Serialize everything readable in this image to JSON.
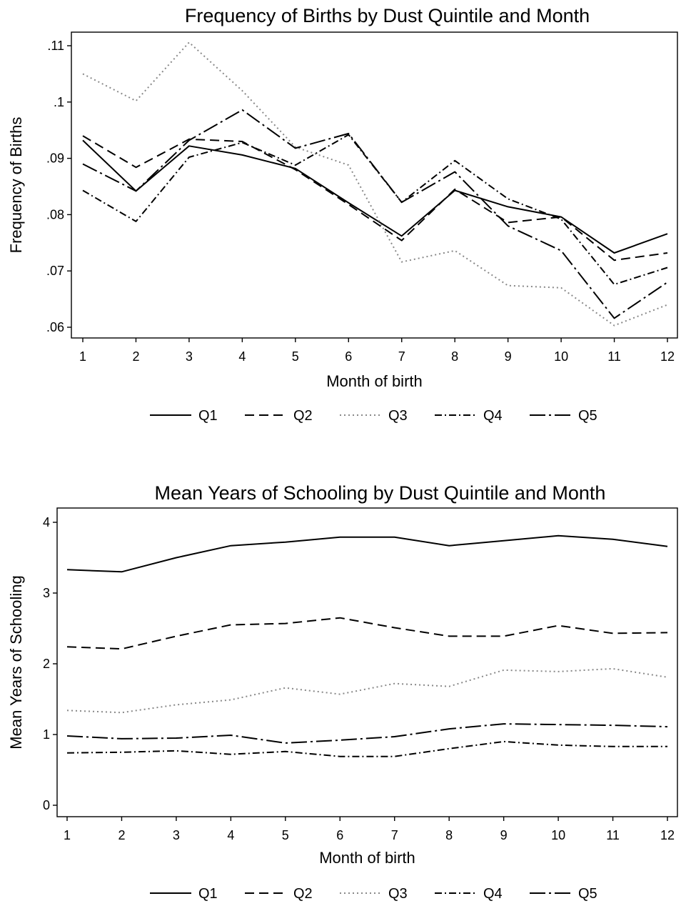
{
  "chart_data": [
    {
      "type": "line",
      "title": "Frequency of Births by Dust Quintile and Month",
      "xlabel": "Month of birth",
      "ylabel": "Frequency of Births",
      "x": [
        1,
        2,
        3,
        4,
        5,
        6,
        7,
        8,
        9,
        10,
        11,
        12
      ],
      "xlim": [
        1,
        12
      ],
      "ylim": [
        0.06,
        0.11
      ],
      "yticks": [
        0.06,
        0.07,
        0.08,
        0.09,
        0.1,
        0.11
      ],
      "ytick_labels": [
        ".06",
        ".07",
        ".08",
        ".09",
        ".1",
        ".11"
      ],
      "xtick_labels": [
        "1",
        "2",
        "3",
        "4",
        "5",
        "6",
        "7",
        "8",
        "9",
        "10",
        "11",
        "12"
      ],
      "grid": false,
      "legend_position": "bottom",
      "series": [
        {
          "name": "Q1",
          "style": "solid",
          "values": [
            0.0932,
            0.0842,
            0.0922,
            0.0906,
            0.0882,
            0.0821,
            0.0762,
            0.0843,
            0.0814,
            0.0796,
            0.0732,
            0.0766
          ]
        },
        {
          "name": "Q2",
          "style": "dashed",
          "values": [
            0.094,
            0.0884,
            0.0934,
            0.093,
            0.088,
            0.0818,
            0.0754,
            0.0845,
            0.0786,
            0.0796,
            0.0719,
            0.0732
          ]
        },
        {
          "name": "Q3",
          "style": "dotted",
          "values": [
            0.105,
            0.1002,
            0.1106,
            0.102,
            0.092,
            0.0888,
            0.0716,
            0.0736,
            0.0674,
            0.067,
            0.0603,
            0.064
          ]
        },
        {
          "name": "Q4",
          "style": "dashdot",
          "values": [
            0.0843,
            0.0788,
            0.0902,
            0.0928,
            0.0888,
            0.0942,
            0.0822,
            0.0896,
            0.0828,
            0.0792,
            0.0676,
            0.0706
          ]
        },
        {
          "name": "Q5",
          "style": "longdashdot",
          "values": [
            0.089,
            0.0842,
            0.0932,
            0.0986,
            0.0918,
            0.0944,
            0.0822,
            0.0876,
            0.078,
            0.0736,
            0.0616,
            0.068
          ]
        }
      ]
    },
    {
      "type": "line",
      "title": "Mean Years of Schooling by Dust Quintile and Month",
      "xlabel": "Month of birth",
      "ylabel": "Mean Years of Schooling",
      "x": [
        1,
        2,
        3,
        4,
        5,
        6,
        7,
        8,
        9,
        10,
        11,
        12
      ],
      "xlim": [
        1,
        12
      ],
      "ylim": [
        0,
        4
      ],
      "yticks": [
        0,
        1,
        2,
        3,
        4
      ],
      "ytick_labels": [
        "0",
        "1",
        "2",
        "3",
        "4"
      ],
      "xtick_labels": [
        "1",
        "2",
        "3",
        "4",
        "5",
        "6",
        "7",
        "8",
        "9",
        "10",
        "11",
        "12"
      ],
      "grid": false,
      "legend_position": "bottom",
      "series": [
        {
          "name": "Q1",
          "style": "solid",
          "values": [
            3.33,
            3.3,
            3.5,
            3.67,
            3.72,
            3.79,
            3.79,
            3.67,
            3.74,
            3.81,
            3.76,
            3.66
          ]
        },
        {
          "name": "Q2",
          "style": "dashed",
          "values": [
            2.24,
            2.21,
            2.39,
            2.55,
            2.57,
            2.65,
            2.51,
            2.39,
            2.39,
            2.54,
            2.43,
            2.44
          ]
        },
        {
          "name": "Q3",
          "style": "dotted",
          "values": [
            1.34,
            1.31,
            1.42,
            1.49,
            1.66,
            1.57,
            1.72,
            1.68,
            1.91,
            1.89,
            1.93,
            1.81
          ]
        },
        {
          "name": "Q4",
          "style": "dashdot",
          "values": [
            0.74,
            0.75,
            0.77,
            0.72,
            0.76,
            0.69,
            0.69,
            0.8,
            0.9,
            0.85,
            0.83,
            0.83
          ]
        },
        {
          "name": "Q5",
          "style": "longdashdot",
          "values": [
            0.98,
            0.94,
            0.95,
            0.99,
            0.88,
            0.92,
            0.97,
            1.08,
            1.15,
            1.14,
            1.13,
            1.11
          ]
        }
      ]
    }
  ]
}
